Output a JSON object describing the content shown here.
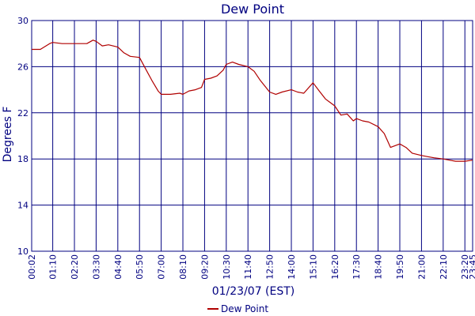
{
  "chart_data": {
    "type": "line",
    "title": "Dew Point",
    "xlabel": "01/23/07 (EST)",
    "ylabel": "Degrees F",
    "ylim": [
      10,
      30
    ],
    "yticks": [
      10,
      14,
      18,
      22,
      26,
      30
    ],
    "xticks": [
      "00:02",
      "01:10",
      "02:20",
      "03:30",
      "04:40",
      "05:50",
      "07:00",
      "08:10",
      "09:20",
      "10:30",
      "11:40",
      "12:50",
      "14:00",
      "15:10",
      "16:20",
      "17:30",
      "18:40",
      "19:50",
      "21:00",
      "22:10",
      "23:20",
      "23:45"
    ],
    "grid": true,
    "legend": "bottom-center",
    "series": [
      {
        "name": "Dew Point",
        "color": "#b00000",
        "x": [
          "00:02",
          "00:30",
          "01:00",
          "01:10",
          "01:40",
          "02:20",
          "03:00",
          "03:20",
          "03:30",
          "03:50",
          "04:10",
          "04:40",
          "05:00",
          "05:20",
          "05:50",
          "06:10",
          "06:30",
          "06:50",
          "07:00",
          "07:30",
          "08:00",
          "08:10",
          "08:30",
          "08:50",
          "09:10",
          "09:20",
          "09:40",
          "10:00",
          "10:20",
          "10:30",
          "10:50",
          "11:10",
          "11:40",
          "12:00",
          "12:20",
          "12:50",
          "13:10",
          "13:30",
          "14:00",
          "14:20",
          "14:40",
          "15:10",
          "15:30",
          "15:50",
          "16:20",
          "16:40",
          "17:00",
          "17:20",
          "17:30",
          "17:50",
          "18:10",
          "18:40",
          "19:00",
          "19:20",
          "19:50",
          "20:10",
          "20:30",
          "21:00",
          "21:20",
          "21:40",
          "22:10",
          "22:30",
          "22:50",
          "23:20",
          "23:45"
        ],
        "y": [
          27.5,
          27.5,
          28.0,
          28.1,
          28.0,
          28.0,
          28.0,
          28.3,
          28.2,
          27.8,
          27.9,
          27.7,
          27.2,
          26.9,
          26.8,
          25.8,
          24.8,
          23.9,
          23.6,
          23.6,
          23.7,
          23.6,
          23.9,
          24.0,
          24.2,
          24.9,
          25.0,
          25.2,
          25.7,
          26.2,
          26.4,
          26.2,
          26.0,
          25.6,
          24.8,
          23.8,
          23.6,
          23.8,
          24.0,
          23.8,
          23.7,
          24.6,
          23.9,
          23.2,
          22.6,
          21.8,
          21.9,
          21.3,
          21.5,
          21.3,
          21.2,
          20.8,
          20.2,
          19.0,
          19.3,
          19.0,
          18.5,
          18.3,
          18.2,
          18.1,
          18.0,
          17.9,
          17.8,
          17.8,
          17.9
        ]
      }
    ]
  }
}
